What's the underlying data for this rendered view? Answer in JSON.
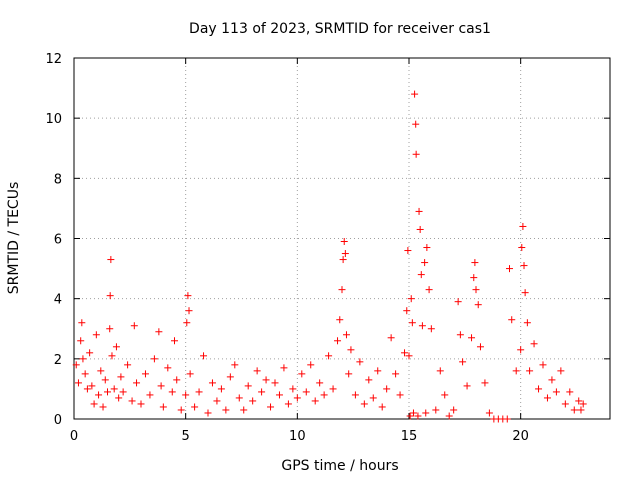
{
  "chart_data": {
    "type": "scatter",
    "title": "Day 113 of 2023, SRMTID for receiver cas1",
    "xlabel": "GPS time / hours",
    "ylabel": "SRMTID / TECUs",
    "xlim": [
      0,
      24
    ],
    "ylim": [
      0,
      12
    ],
    "xticks": [
      0,
      5,
      10,
      15,
      20
    ],
    "yticks": [
      0,
      2,
      4,
      6,
      8,
      10,
      12
    ],
    "grid": true,
    "marker": "+",
    "series": [
      {
        "name": "SRMTID",
        "color": "#ff0000",
        "points": [
          [
            0.1,
            1.8
          ],
          [
            0.2,
            1.2
          ],
          [
            0.3,
            2.6
          ],
          [
            0.35,
            3.2
          ],
          [
            0.4,
            2.0
          ],
          [
            0.5,
            1.5
          ],
          [
            0.6,
            1.0
          ],
          [
            0.7,
            2.2
          ],
          [
            0.8,
            1.1
          ],
          [
            0.9,
            0.5
          ],
          [
            1.0,
            2.8
          ],
          [
            1.1,
            0.8
          ],
          [
            1.2,
            1.6
          ],
          [
            1.3,
            0.4
          ],
          [
            1.4,
            1.3
          ],
          [
            1.5,
            0.9
          ],
          [
            1.6,
            3.0
          ],
          [
            1.62,
            4.1
          ],
          [
            1.65,
            5.3
          ],
          [
            1.7,
            2.1
          ],
          [
            1.8,
            1.0
          ],
          [
            1.9,
            2.4
          ],
          [
            2.0,
            0.7
          ],
          [
            2.1,
            1.4
          ],
          [
            2.2,
            0.9
          ],
          [
            2.4,
            1.8
          ],
          [
            2.6,
            0.6
          ],
          [
            2.7,
            3.1
          ],
          [
            2.8,
            1.2
          ],
          [
            3.0,
            0.5
          ],
          [
            3.2,
            1.5
          ],
          [
            3.4,
            0.8
          ],
          [
            3.6,
            2.0
          ],
          [
            3.8,
            2.9
          ],
          [
            3.9,
            1.1
          ],
          [
            4.0,
            0.4
          ],
          [
            4.2,
            1.7
          ],
          [
            4.4,
            0.9
          ],
          [
            4.5,
            2.6
          ],
          [
            4.6,
            1.3
          ],
          [
            4.8,
            0.3
          ],
          [
            5.0,
            0.8
          ],
          [
            5.05,
            3.2
          ],
          [
            5.1,
            4.1
          ],
          [
            5.15,
            3.6
          ],
          [
            5.2,
            1.5
          ],
          [
            5.4,
            0.4
          ],
          [
            5.6,
            0.9
          ],
          [
            5.8,
            2.1
          ],
          [
            6.0,
            0.2
          ],
          [
            6.2,
            1.2
          ],
          [
            6.4,
            0.6
          ],
          [
            6.6,
            1.0
          ],
          [
            6.8,
            0.3
          ],
          [
            7.0,
            1.4
          ],
          [
            7.2,
            1.8
          ],
          [
            7.4,
            0.7
          ],
          [
            7.6,
            0.3
          ],
          [
            7.8,
            1.1
          ],
          [
            8.0,
            0.6
          ],
          [
            8.2,
            1.6
          ],
          [
            8.4,
            0.9
          ],
          [
            8.6,
            1.3
          ],
          [
            8.8,
            0.4
          ],
          [
            9.0,
            1.2
          ],
          [
            9.2,
            0.8
          ],
          [
            9.4,
            1.7
          ],
          [
            9.6,
            0.5
          ],
          [
            9.8,
            1.0
          ],
          [
            10.0,
            0.7
          ],
          [
            10.2,
            1.5
          ],
          [
            10.4,
            0.9
          ],
          [
            10.6,
            1.8
          ],
          [
            10.8,
            0.6
          ],
          [
            11.0,
            1.2
          ],
          [
            11.2,
            0.8
          ],
          [
            11.4,
            2.1
          ],
          [
            11.6,
            1.0
          ],
          [
            11.8,
            2.6
          ],
          [
            11.9,
            3.3
          ],
          [
            12.0,
            4.3
          ],
          [
            12.05,
            5.3
          ],
          [
            12.1,
            5.9
          ],
          [
            12.15,
            5.5
          ],
          [
            12.2,
            2.8
          ],
          [
            12.3,
            1.5
          ],
          [
            12.4,
            2.3
          ],
          [
            12.6,
            0.8
          ],
          [
            12.8,
            1.9
          ],
          [
            13.0,
            0.5
          ],
          [
            13.2,
            1.3
          ],
          [
            13.4,
            0.7
          ],
          [
            13.6,
            1.6
          ],
          [
            13.8,
            0.4
          ],
          [
            14.0,
            1.0
          ],
          [
            14.2,
            2.7
          ],
          [
            14.4,
            1.5
          ],
          [
            14.6,
            0.8
          ],
          [
            14.8,
            2.2
          ],
          [
            14.9,
            3.6
          ],
          [
            14.95,
            5.6
          ],
          [
            15.0,
            2.1
          ],
          [
            15.05,
            0.1
          ],
          [
            15.1,
            4.0
          ],
          [
            15.15,
            3.2
          ],
          [
            15.2,
            0.2
          ],
          [
            15.25,
            10.8
          ],
          [
            15.3,
            9.8
          ],
          [
            15.32,
            8.8
          ],
          [
            15.4,
            0.1
          ],
          [
            15.45,
            6.9
          ],
          [
            15.5,
            6.3
          ],
          [
            15.55,
            4.8
          ],
          [
            15.6,
            3.1
          ],
          [
            15.7,
            5.2
          ],
          [
            15.75,
            0.2
          ],
          [
            15.8,
            5.7
          ],
          [
            15.9,
            4.3
          ],
          [
            16.0,
            3.0
          ],
          [
            16.2,
            0.3
          ],
          [
            16.4,
            1.6
          ],
          [
            16.6,
            0.8
          ],
          [
            16.8,
            0.1
          ],
          [
            17.0,
            0.3
          ],
          [
            17.2,
            3.9
          ],
          [
            17.3,
            2.8
          ],
          [
            17.4,
            1.9
          ],
          [
            17.6,
            1.1
          ],
          [
            17.8,
            2.7
          ],
          [
            17.9,
            4.7
          ],
          [
            17.95,
            5.2
          ],
          [
            18.0,
            4.3
          ],
          [
            18.1,
            3.8
          ],
          [
            18.2,
            2.4
          ],
          [
            18.4,
            1.2
          ],
          [
            18.6,
            0.2
          ],
          [
            18.8,
            0.0
          ],
          [
            19.0,
            0.0
          ],
          [
            19.2,
            0.0
          ],
          [
            19.4,
            0.0
          ],
          [
            19.5,
            5.0
          ],
          [
            19.6,
            3.3
          ],
          [
            19.8,
            1.6
          ],
          [
            20.0,
            2.3
          ],
          [
            20.05,
            5.7
          ],
          [
            20.1,
            6.4
          ],
          [
            20.15,
            5.1
          ],
          [
            20.2,
            4.2
          ],
          [
            20.3,
            3.2
          ],
          [
            20.4,
            1.6
          ],
          [
            20.6,
            2.5
          ],
          [
            20.8,
            1.0
          ],
          [
            21.0,
            1.8
          ],
          [
            21.2,
            0.7
          ],
          [
            21.4,
            1.3
          ],
          [
            21.6,
            0.9
          ],
          [
            21.8,
            1.6
          ],
          [
            22.0,
            0.5
          ],
          [
            22.2,
            0.9
          ],
          [
            22.4,
            0.3
          ],
          [
            22.6,
            0.6
          ],
          [
            22.7,
            0.3
          ],
          [
            22.8,
            0.5
          ]
        ]
      }
    ]
  }
}
